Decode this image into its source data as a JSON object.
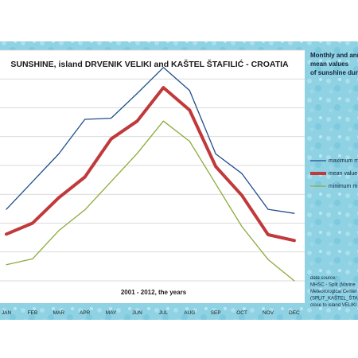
{
  "chart_data": {
    "type": "line",
    "title": "SUNSHINE, island DRVENIK VELIKI and KAŠTEL ŠTAFILIĆ - CROATIA",
    "xlabel": "2001 - 2012, the years",
    "ylabel": "",
    "categories": [
      "JAN",
      "FEB",
      "MAR",
      "APR",
      "MAY",
      "JUN",
      "JUL",
      "AUG",
      "SEP",
      "OCT",
      "NOV",
      "DEC"
    ],
    "ylim": [
      0,
      400
    ],
    "grid": true,
    "legend_position": "right",
    "series": [
      {
        "name": "maximum m",
        "color": "#1f4e8c",
        "values": [
          124,
          172,
          220,
          280,
          282,
          325,
          370,
          330,
          220,
          186,
          124,
          117
        ]
      },
      {
        "name": "mean value",
        "color": "#c0393b",
        "values": [
          81,
          100,
          144,
          180,
          246,
          277,
          335,
          296,
          198,
          148,
          80,
          70
        ]
      },
      {
        "name": "minimum m",
        "color": "#8aab3a",
        "values": [
          28,
          38,
          87,
          123,
          172,
          221,
          277,
          242,
          168,
          94,
          37,
          0
        ]
      }
    ],
    "side_panel": {
      "heading_lines": [
        "Monthly and ann",
        "mean values",
        "of sunshine durat"
      ],
      "source_lines": [
        "data source:",
        "MHSC - Split (Marine",
        "Meteorological Center",
        "(SPLIT_KAŠTEL_ŠTAFILI",
        "close to island VELIKI D"
      ]
    }
  }
}
